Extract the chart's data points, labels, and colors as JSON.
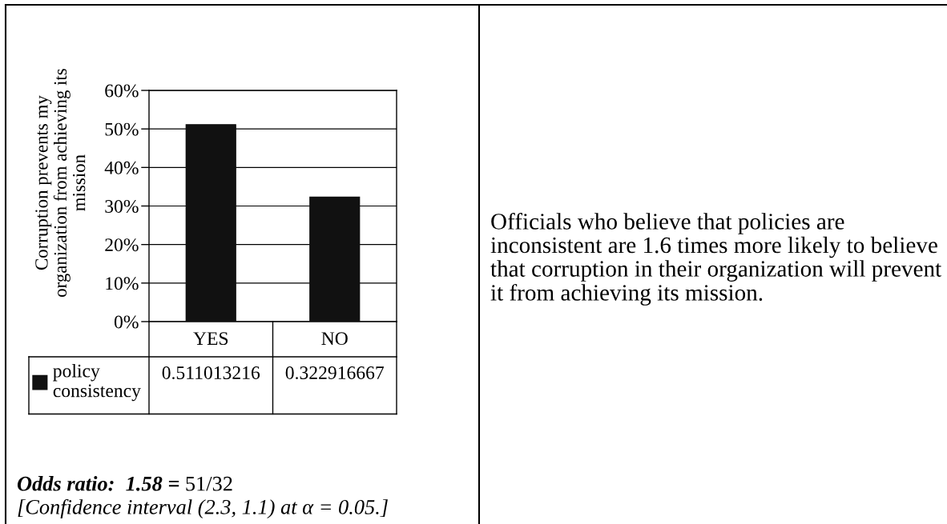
{
  "chart_data": {
    "type": "bar",
    "ylabel": "Corruption prevents my\norganization from achieving its\nmission",
    "categories": [
      "YES",
      "NO"
    ],
    "series": [
      {
        "name": "policy\nconsistency",
        "color": "#111111",
        "values": [
          0.511013216,
          0.322916667
        ]
      }
    ],
    "ylim": [
      0,
      0.6
    ],
    "yticks": [
      {
        "value": 0,
        "label": "0%"
      },
      {
        "value": 0.1,
        "label": "10%"
      },
      {
        "value": 0.2,
        "label": "20%"
      },
      {
        "value": 0.3,
        "label": "30%"
      },
      {
        "value": 0.4,
        "label": "40%"
      },
      {
        "value": 0.5,
        "label": "50%"
      },
      {
        "value": 0.6,
        "label": "60%"
      }
    ],
    "grid": "y",
    "legend": "bottom",
    "data_labels": true,
    "annotations": [
      "Odds ratio:  1.58 =",
      "51/32",
      "[Confidence interval (2.3, 1.1) at α = 0.05.]",
      "Officials who believe that policies are inconsistent are 1.6 times more likely to believe that corruption in their organization will prevent it from achieving its mission."
    ]
  }
}
